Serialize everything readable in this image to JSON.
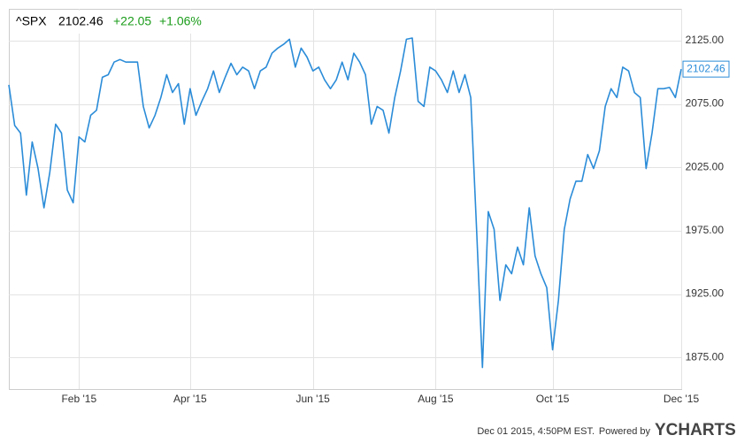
{
  "chart_data": {
    "type": "line",
    "symbol": "^SPX",
    "price": "2102.46",
    "change": "+22.05",
    "change_pct": "+1.06%",
    "timestamp": "Dec 01 2015, 4:50PM EST.",
    "powered_by": "Powered by",
    "brand": "YCHARTS",
    "categories": [
      null,
      null,
      null,
      null,
      null,
      null,
      null,
      null,
      null,
      null,
      null,
      null,
      "Feb '15",
      null,
      null,
      null,
      null,
      null,
      null,
      null,
      null,
      null,
      null,
      null,
      null,
      null,
      null,
      null,
      null,
      null,
      null,
      "Apr '15",
      null,
      null,
      null,
      null,
      null,
      null,
      null,
      null,
      null,
      null,
      null,
      null,
      null,
      null,
      null,
      null,
      null,
      null,
      null,
      null,
      "Jun '15",
      null,
      null,
      null,
      null,
      null,
      null,
      null,
      null,
      null,
      null,
      null,
      null,
      null,
      null,
      null,
      null,
      null,
      null,
      null,
      null,
      "Aug '15",
      null,
      null,
      null,
      null,
      null,
      null,
      null,
      null,
      null,
      null,
      null,
      null,
      null,
      null,
      null,
      null,
      null,
      null,
      null,
      "Oct '15",
      null,
      null,
      null,
      null,
      null,
      null,
      null,
      null,
      null,
      null,
      null,
      null,
      null,
      null,
      null,
      null,
      null,
      null,
      null,
      null,
      null,
      "Dec '15"
    ],
    "series": [
      {
        "name": "^SPX",
        "color": "#2b8cd8",
        "values": [
          2090,
          2058,
          2052,
          2003,
          2045,
          2024,
          1993,
          2021,
          2059,
          2052,
          2007,
          1997,
          2049,
          2045,
          2066,
          2070,
          2096,
          2098,
          2108,
          2110,
          2108,
          2108,
          2108,
          2073,
          2056,
          2066,
          2080,
          2098,
          2084,
          2091,
          2059,
          2087,
          2066,
          2077,
          2087,
          2101,
          2084,
          2096,
          2107,
          2098,
          2104,
          2101,
          2087,
          2101,
          2104,
          2115,
          2119,
          2122,
          2126,
          2104,
          2119,
          2112,
          2101,
          2104,
          2094,
          2087,
          2094,
          2108,
          2094,
          2115,
          2108,
          2098,
          2059,
          2073,
          2070,
          2052,
          2080,
          2101,
          2126,
          2127,
          2077,
          2073,
          2104,
          2101,
          2094,
          2084,
          2101,
          2084,
          2098,
          2080,
          1976,
          1867,
          1990,
          1976,
          1920,
          1948,
          1941,
          1962,
          1948,
          1993,
          1955,
          1941,
          1930,
          1881,
          1920,
          1976,
          2000,
          2014,
          2014,
          2035,
          2024,
          2038,
          2073,
          2087,
          2080,
          2104,
          2101,
          2084,
          2080,
          2024,
          2052,
          2087,
          2087,
          2088,
          2080,
          2102.46
        ]
      }
    ],
    "ylim": [
      1850,
      2150
    ],
    "yticks": [
      {
        "value": 1875,
        "label": "1875.00"
      },
      {
        "value": 1925,
        "label": "1925.00"
      },
      {
        "value": 1975,
        "label": "1975.00"
      },
      {
        "value": 2025,
        "label": "2025.00"
      },
      {
        "value": 2075,
        "label": "2075.00"
      },
      {
        "value": 2125,
        "label": "2125.00"
      }
    ],
    "grid": true
  }
}
